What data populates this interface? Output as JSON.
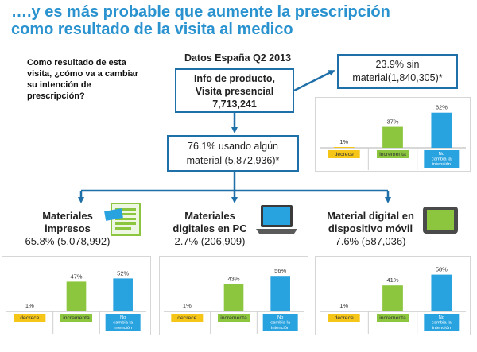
{
  "title": {
    "line1": "….y es más probable que aumente la prescripción",
    "line2": "como resultado de la visita al medico"
  },
  "question": "Como resultado de esta visita, ¿cómo va a cambiar su intención de prescripción?",
  "header": {
    "datos": "Datos España Q2 2013"
  },
  "boxes": {
    "info": {
      "line1": "Info de producto,",
      "line2": "Visita presencial",
      "line3": "7,713,241"
    },
    "sin": {
      "line1": "23.9% sin",
      "line2": "material(1,840,305)*"
    },
    "usando": {
      "line1": "76.1% usando algún",
      "line2": "material (5,872,936)*"
    }
  },
  "categories": [
    {
      "line1": "Materiales",
      "line2": "impresos",
      "line3": "65.8% (5,078,992)",
      "icon": "document-icon"
    },
    {
      "line1": "Materiales",
      "line2": "digitales en PC",
      "line3": "2.7% (206,909)",
      "icon": "laptop-icon"
    },
    {
      "line1": "Material digital en",
      "line2": "dispositivo móvil",
      "line3": "7.6% (587,036)",
      "icon": "tablet-icon"
    }
  ],
  "colors": {
    "title": "#2a93cf",
    "decrece": "#f5c518",
    "incrementa": "#8cc63f",
    "no_cambia": "#29a3e0",
    "arrow": "#1f6fa8"
  },
  "chart_data": [
    {
      "type": "bar",
      "categories": [
        "decrece",
        "incrementa",
        "No cambia la intención"
      ],
      "values": [
        1,
        37,
        62
      ],
      "labels": [
        "1%",
        "37%",
        "62%"
      ]
    },
    {
      "type": "bar",
      "categories": [
        "decrece",
        "incrementa",
        "No cambia la intención"
      ],
      "values": [
        1,
        47,
        52
      ],
      "labels": [
        "1%",
        "47%",
        "52%"
      ]
    },
    {
      "type": "bar",
      "categories": [
        "decrece",
        "incrementa",
        "No cambia la intención"
      ],
      "values": [
        1,
        43,
        56
      ],
      "labels": [
        "1%",
        "43%",
        "56%"
      ]
    },
    {
      "type": "bar",
      "categories": [
        "decrece",
        "incrementa",
        "No cambia la intención"
      ],
      "values": [
        1,
        41,
        58
      ],
      "labels": [
        "1%",
        "41%",
        "58%"
      ]
    }
  ]
}
